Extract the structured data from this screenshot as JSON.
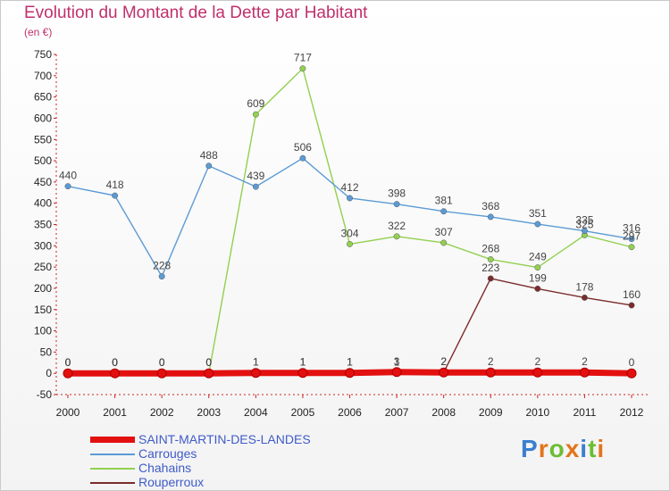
{
  "title": "Evolution du Montant de la Dette par Habitant",
  "subtitle": "(en €)",
  "logo": [
    "P",
    "r",
    "o",
    "x",
    "i",
    "t",
    "i"
  ],
  "colors": {
    "title": "#c0306b",
    "legend_text": "#3f5bc9",
    "logo": [
      "#3a7fd0",
      "#e2751b",
      "#6cbd34",
      "#e2751b",
      "#3a7fd0",
      "#6cbd34",
      "#e2751b"
    ]
  },
  "chart_data": {
    "type": "line",
    "x": [
      "2000",
      "2001",
      "2002",
      "2003",
      "2004",
      "2005",
      "2006",
      "2007",
      "2008",
      "2009",
      "2010",
      "2011",
      "2012"
    ],
    "ylim": [
      -50,
      750
    ],
    "yticks": [
      -50,
      0,
      50,
      100,
      150,
      200,
      250,
      300,
      350,
      400,
      450,
      500,
      550,
      600,
      650,
      700,
      750
    ],
    "grid": false,
    "legend": "bottom-left",
    "series": [
      {
        "name": "SAINT-MARTIN-DES-LANDES",
        "color": "#e31010",
        "values": [
          0,
          0,
          0,
          0,
          1,
          1,
          1,
          3,
          2,
          2,
          2,
          2,
          0
        ]
      },
      {
        "name": "Carrouges",
        "color": "#5b9bd5",
        "values": [
          440,
          418,
          228,
          488,
          439,
          506,
          412,
          398,
          381,
          368,
          351,
          335,
          316
        ]
      },
      {
        "name": "Chahains",
        "color": "#92d050",
        "values": [
          0,
          0,
          0,
          0,
          609,
          717,
          304,
          322,
          307,
          268,
          249,
          325,
          297
        ]
      },
      {
        "name": "Rouperroux",
        "color": "#7b2c2c",
        "values": [
          0,
          0,
          0,
          0,
          1,
          1,
          1,
          1,
          2,
          223,
          199,
          178,
          160
        ]
      }
    ]
  }
}
